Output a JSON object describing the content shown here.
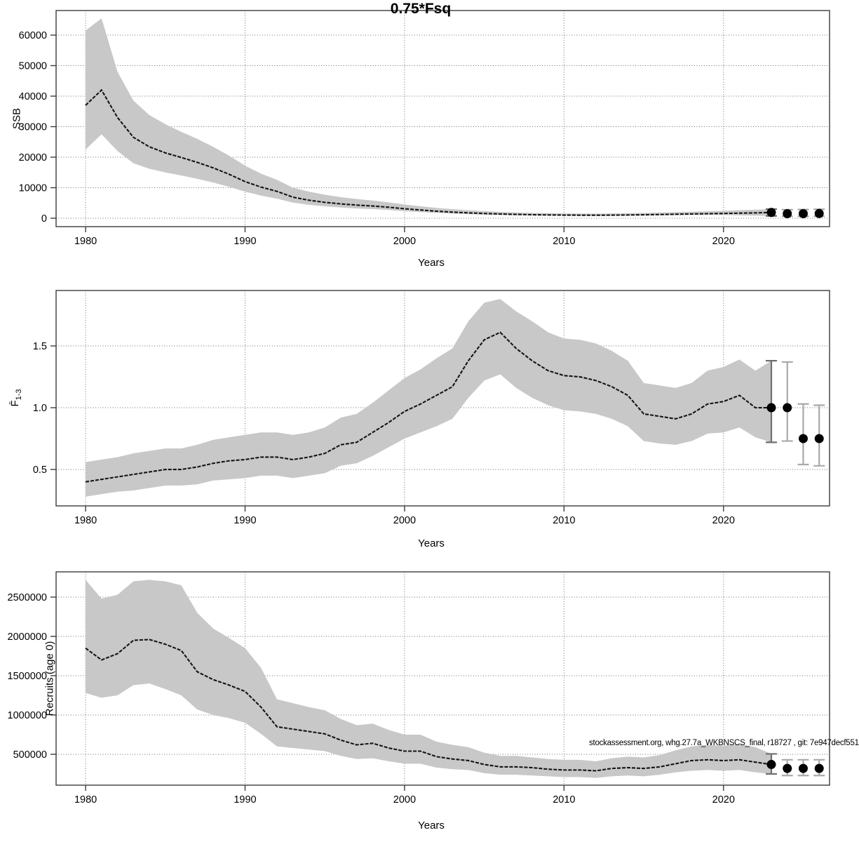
{
  "title": "0.75*Fsq",
  "annotation": "stockassessment.org, whg.27.7a_WKBNSCS_final, r18727 , git: 7e947decf551",
  "colors": {
    "band": "#c8c8c8",
    "line": "#141414",
    "dot": "#000000",
    "grid": "#6e6e6e",
    "frame": "#3c3c3c",
    "bar_dark": "#6f6f6f",
    "bar_light": "#a9a9a9",
    "background": "#ffffff"
  },
  "chart_data": [
    {
      "type": "line",
      "name": "SSB",
      "ylabel": "SSB",
      "xlabel": "Years",
      "xlim": [
        1978.15,
        2026.65
      ],
      "ylim": [
        -2760,
        68050
      ],
      "grid": true,
      "legend": "none",
      "xticks": [
        {
          "v": 1980,
          "label": "1980"
        },
        {
          "v": 1990,
          "label": "1990"
        },
        {
          "v": 2000,
          "label": "2000"
        },
        {
          "v": 2010,
          "label": "2010"
        },
        {
          "v": 2020,
          "label": "2020"
        }
      ],
      "yticks": [
        {
          "v": 0,
          "label": "0"
        },
        {
          "v": 10000,
          "label": "10000"
        },
        {
          "v": 20000,
          "label": "20000"
        },
        {
          "v": 30000,
          "label": "30000"
        },
        {
          "v": 40000,
          "label": "40000"
        },
        {
          "v": 50000,
          "label": "50000"
        },
        {
          "v": 60000,
          "label": "60000"
        }
      ],
      "x": [
        1980,
        1981,
        1982,
        1983,
        1984,
        1985,
        1986,
        1987,
        1988,
        1989,
        1990,
        1991,
        1992,
        1993,
        1994,
        1995,
        1996,
        1997,
        1998,
        1999,
        2000,
        2001,
        2002,
        2003,
        2004,
        2005,
        2006,
        2007,
        2008,
        2009,
        2010,
        2011,
        2012,
        2013,
        2014,
        2015,
        2016,
        2017,
        2018,
        2019,
        2020,
        2021,
        2022,
        2023
      ],
      "median": [
        37000,
        42000,
        33000,
        26500,
        23400,
        21400,
        19900,
        18300,
        16500,
        14400,
        12000,
        10200,
        8800,
        6900,
        5900,
        5200,
        4700,
        4300,
        4000,
        3600,
        3100,
        2700,
        2300,
        2000,
        1750,
        1550,
        1380,
        1250,
        1150,
        1080,
        1030,
        1000,
        990,
        1010,
        1060,
        1130,
        1210,
        1300,
        1400,
        1480,
        1550,
        1650,
        1750,
        1900
      ],
      "lower": [
        22500,
        27500,
        22000,
        18000,
        16200,
        15000,
        14000,
        12900,
        11700,
        10300,
        8700,
        7400,
        6400,
        5100,
        4400,
        3900,
        3500,
        3200,
        3000,
        2700,
        2300,
        2000,
        1750,
        1520,
        1330,
        1180,
        1050,
        950,
        870,
        820,
        780,
        760,
        750,
        765,
        800,
        855,
        915,
        985,
        1050,
        1100,
        1050,
        950,
        850,
        750
      ],
      "upper": [
        61500,
        65500,
        48000,
        38500,
        33800,
        30800,
        28300,
        26000,
        23400,
        20500,
        17200,
        14600,
        12600,
        10000,
        8700,
        7700,
        6900,
        6300,
        5800,
        5200,
        4500,
        3900,
        3400,
        2950,
        2600,
        2300,
        2060,
        1870,
        1730,
        1630,
        1560,
        1520,
        1500,
        1540,
        1610,
        1720,
        1840,
        1980,
        2120,
        2250,
        2400,
        2600,
        2800,
        3000
      ],
      "forecast": [
        {
          "year": 2023,
          "value": 1900,
          "lower": 750,
          "upper": 3000,
          "emphasis": "dark"
        },
        {
          "year": 2024,
          "value": 1500,
          "lower": 650,
          "upper": 2800,
          "emphasis": "light"
        },
        {
          "year": 2025,
          "value": 1500,
          "lower": 620,
          "upper": 2850,
          "emphasis": "light"
        },
        {
          "year": 2026,
          "value": 1550,
          "lower": 650,
          "upper": 2950,
          "emphasis": "light"
        }
      ]
    },
    {
      "type": "line",
      "name": "Fbar(1-3)",
      "ylabel_base": "F̄",
      "ylabel_sub": "1-3",
      "xlabel": "Years",
      "xlim": [
        1978.15,
        2026.65
      ],
      "ylim": [
        0.205,
        1.949
      ],
      "grid": true,
      "legend": "none",
      "xticks": [
        {
          "v": 1980,
          "label": "1980"
        },
        {
          "v": 1990,
          "label": "1990"
        },
        {
          "v": 2000,
          "label": "2000"
        },
        {
          "v": 2010,
          "label": "2010"
        },
        {
          "v": 2020,
          "label": "2020"
        }
      ],
      "yticks": [
        {
          "v": 0.5,
          "label": "0.5"
        },
        {
          "v": 1.0,
          "label": "1.0"
        },
        {
          "v": 1.5,
          "label": "1.5"
        }
      ],
      "x": [
        1980,
        1981,
        1982,
        1983,
        1984,
        1985,
        1986,
        1987,
        1988,
        1989,
        1990,
        1991,
        1992,
        1993,
        1994,
        1995,
        1996,
        1997,
        1998,
        1999,
        2000,
        2001,
        2002,
        2003,
        2004,
        2005,
        2006,
        2007,
        2008,
        2009,
        2010,
        2011,
        2012,
        2013,
        2014,
        2015,
        2016,
        2017,
        2018,
        2019,
        2020,
        2021,
        2022,
        2023
      ],
      "median": [
        0.4,
        0.42,
        0.44,
        0.46,
        0.48,
        0.5,
        0.5,
        0.52,
        0.55,
        0.57,
        0.58,
        0.6,
        0.6,
        0.58,
        0.6,
        0.63,
        0.7,
        0.72,
        0.8,
        0.88,
        0.97,
        1.03,
        1.1,
        1.17,
        1.38,
        1.55,
        1.61,
        1.48,
        1.38,
        1.3,
        1.26,
        1.25,
        1.22,
        1.17,
        1.1,
        0.95,
        0.93,
        0.91,
        0.95,
        1.03,
        1.05,
        1.1,
        1.0,
        1.0
      ],
      "lower": [
        0.28,
        0.3,
        0.32,
        0.33,
        0.35,
        0.37,
        0.37,
        0.38,
        0.41,
        0.42,
        0.43,
        0.45,
        0.45,
        0.43,
        0.45,
        0.47,
        0.53,
        0.55,
        0.61,
        0.68,
        0.75,
        0.8,
        0.85,
        0.91,
        1.08,
        1.22,
        1.27,
        1.16,
        1.08,
        1.02,
        0.98,
        0.97,
        0.95,
        0.91,
        0.85,
        0.73,
        0.71,
        0.7,
        0.73,
        0.79,
        0.8,
        0.84,
        0.76,
        0.72
      ],
      "upper": [
        0.56,
        0.58,
        0.6,
        0.63,
        0.65,
        0.67,
        0.67,
        0.7,
        0.74,
        0.76,
        0.78,
        0.8,
        0.8,
        0.78,
        0.8,
        0.84,
        0.92,
        0.95,
        1.04,
        1.14,
        1.24,
        1.31,
        1.4,
        1.48,
        1.7,
        1.85,
        1.88,
        1.78,
        1.7,
        1.61,
        1.56,
        1.55,
        1.52,
        1.46,
        1.38,
        1.2,
        1.18,
        1.16,
        1.2,
        1.3,
        1.33,
        1.39,
        1.3,
        1.38
      ],
      "forecast": [
        {
          "year": 2023,
          "value": 1.0,
          "lower": 0.72,
          "upper": 1.38,
          "emphasis": "dark"
        },
        {
          "year": 2024,
          "value": 1.0,
          "lower": 0.73,
          "upper": 1.37,
          "emphasis": "light"
        },
        {
          "year": 2025,
          "value": 0.75,
          "lower": 0.54,
          "upper": 1.03,
          "emphasis": "light"
        },
        {
          "year": 2026,
          "value": 0.75,
          "lower": 0.53,
          "upper": 1.02,
          "emphasis": "light"
        }
      ]
    },
    {
      "type": "line",
      "name": "Recruits (age 0)",
      "ylabel": "Recruits (age 0)",
      "xlabel": "Years",
      "xlim": [
        1978.15,
        2026.65
      ],
      "ylim": [
        107000,
        2821000
      ],
      "grid": true,
      "legend": "none",
      "xticks": [
        {
          "v": 1980,
          "label": "1980"
        },
        {
          "v": 1990,
          "label": "1990"
        },
        {
          "v": 2000,
          "label": "2000"
        },
        {
          "v": 2010,
          "label": "2010"
        },
        {
          "v": 2020,
          "label": "2020"
        }
      ],
      "yticks": [
        {
          "v": 500000,
          "label": "500000"
        },
        {
          "v": 1000000,
          "label": "1000000"
        },
        {
          "v": 1500000,
          "label": "1500000"
        },
        {
          "v": 2000000,
          "label": "2000000"
        },
        {
          "v": 2500000,
          "label": "2500000"
        }
      ],
      "x": [
        1980,
        1981,
        1982,
        1983,
        1984,
        1985,
        1986,
        1987,
        1988,
        1989,
        1990,
        1991,
        1992,
        1993,
        1994,
        1995,
        1996,
        1997,
        1998,
        1999,
        2000,
        2001,
        2002,
        2003,
        2004,
        2005,
        2006,
        2007,
        2008,
        2009,
        2010,
        2011,
        2012,
        2013,
        2014,
        2015,
        2016,
        2017,
        2018,
        2019,
        2020,
        2021,
        2022,
        2023
      ],
      "median": [
        1850000,
        1700000,
        1780000,
        1950000,
        1960000,
        1900000,
        1820000,
        1550000,
        1450000,
        1380000,
        1300000,
        1100000,
        850000,
        820000,
        790000,
        760000,
        680000,
        620000,
        640000,
        580000,
        540000,
        540000,
        470000,
        440000,
        420000,
        370000,
        340000,
        340000,
        330000,
        310000,
        300000,
        300000,
        290000,
        320000,
        330000,
        320000,
        340000,
        380000,
        420000,
        430000,
        420000,
        430000,
        400000,
        370000
      ],
      "lower": [
        1280000,
        1220000,
        1250000,
        1380000,
        1400000,
        1330000,
        1250000,
        1070000,
        1000000,
        960000,
        900000,
        760000,
        600000,
        580000,
        560000,
        540000,
        480000,
        440000,
        450000,
        410000,
        380000,
        380000,
        330000,
        310000,
        300000,
        260000,
        240000,
        240000,
        230000,
        220000,
        210000,
        210000,
        200000,
        220000,
        230000,
        220000,
        240000,
        270000,
        290000,
        300000,
        290000,
        300000,
        270000,
        250000
      ],
      "upper": [
        2720000,
        2480000,
        2530000,
        2700000,
        2720000,
        2700000,
        2650000,
        2300000,
        2100000,
        1980000,
        1850000,
        1600000,
        1200000,
        1150000,
        1100000,
        1060000,
        950000,
        870000,
        890000,
        810000,
        750000,
        750000,
        660000,
        620000,
        590000,
        520000,
        480000,
        480000,
        460000,
        440000,
        430000,
        430000,
        410000,
        450000,
        470000,
        460000,
        490000,
        550000,
        600000,
        620000,
        610000,
        630000,
        590000,
        505000
      ],
      "forecast": [
        {
          "year": 2023,
          "value": 370000,
          "lower": 250000,
          "upper": 505000,
          "emphasis": "dark"
        },
        {
          "year": 2024,
          "value": 320000,
          "lower": 230000,
          "upper": 430000,
          "emphasis": "light"
        },
        {
          "year": 2025,
          "value": 320000,
          "lower": 230000,
          "upper": 430000,
          "emphasis": "light"
        },
        {
          "year": 2026,
          "value": 320000,
          "lower": 230000,
          "upper": 430000,
          "emphasis": "light"
        }
      ]
    }
  ]
}
